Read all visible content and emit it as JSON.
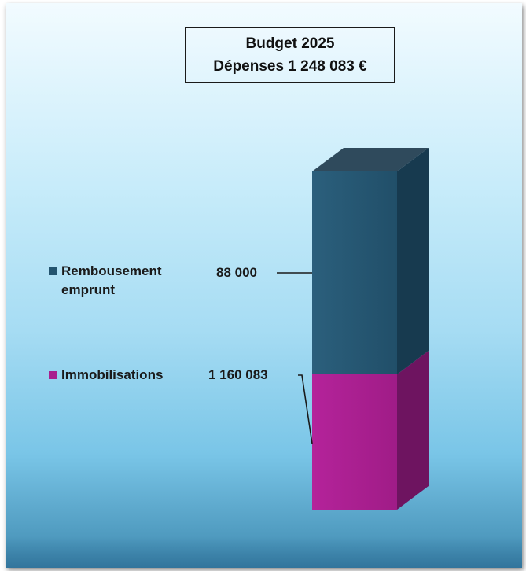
{
  "title": {
    "line1": "Budget 2025",
    "line2": "Dépenses 1 248 083 €"
  },
  "colors": {
    "rembousement": "#23546f",
    "immobilisations": "#a81f8e"
  },
  "chart_data": {
    "type": "bar",
    "stacked": true,
    "three_d": true,
    "categories": [
      "Budget 2025"
    ],
    "series": [
      {
        "name": "Immobilisations",
        "values": [
          1160083
        ],
        "label": "1 160 083"
      },
      {
        "name": "Rembousement emprunt",
        "values": [
          88000
        ],
        "label": "88 000"
      }
    ],
    "total": 1248083,
    "legend": "left"
  }
}
